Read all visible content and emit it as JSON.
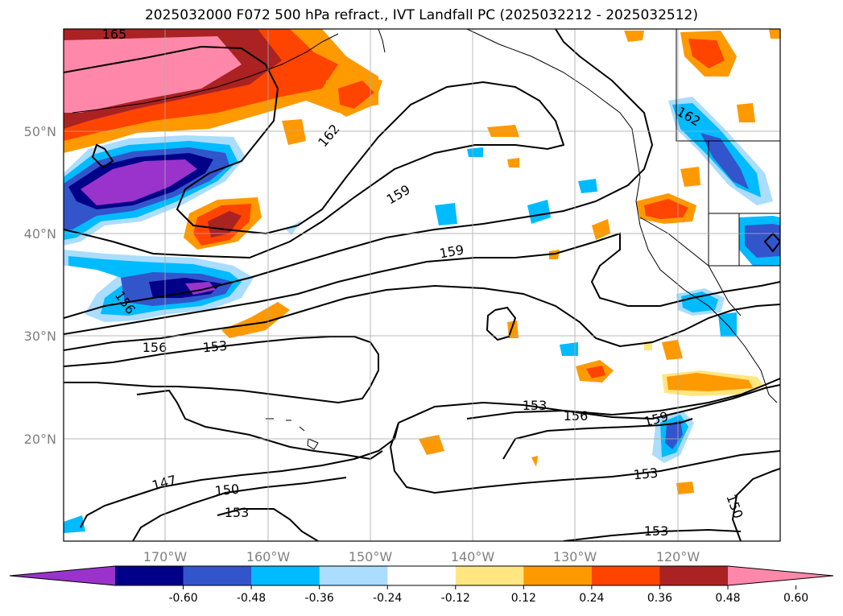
{
  "title": "2025032000 F072 500 hPa refract., IVT Landfall PC (2025032212 - 2025032512)",
  "lat_labels": [
    "50°N",
    "40°N",
    "30°N",
    "20°N"
  ],
  "lon_labels": [
    "170°W",
    "160°W",
    "150°W",
    "140°W",
    "130°W",
    "120°W"
  ],
  "contour_labels": [
    "165",
    "162",
    "162",
    "159",
    "159",
    "156",
    "156",
    "153",
    "153",
    "156",
    "159",
    "153",
    "147",
    "150",
    "153",
    "153",
    "150"
  ],
  "colorbar": {
    "ticks": [
      "-0.60",
      "-0.48",
      "-0.36",
      "-0.24",
      "-0.12",
      "0.12",
      "0.24",
      "0.36",
      "0.48",
      "0.60"
    ],
    "colors": [
      "#9933cc",
      "#000088",
      "#3355cc",
      "#00bbff",
      "#aaddff",
      "#ffffff",
      "#ffe680",
      "#ff9900",
      "#ff4400",
      "#aa2222",
      "#ff88aa"
    ]
  }
}
